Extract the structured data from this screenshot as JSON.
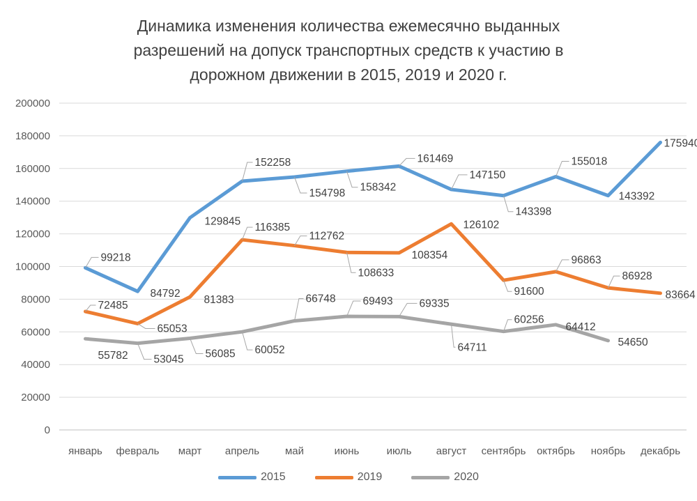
{
  "title": {
    "lines": [
      "Динамика изменения  количества ежемесячно выданных",
      "разрешений на допуск транспортных средств к участию в",
      "дорожном движении в 2015, 2019 и 2020 г."
    ]
  },
  "chart_data": {
    "type": "line",
    "title": "Динамика изменения количества ежемесячно выданных разрешений на допуск транспортных средств к участию в дорожном движении в 2015, 2019 и 2020 г.",
    "xlabel": "",
    "ylabel": "",
    "ylim": [
      0,
      200000
    ],
    "y_ticks": [
      "0",
      "20000",
      "40000",
      "60000",
      "80000",
      "100000",
      "120000",
      "140000",
      "160000",
      "180000",
      "200000"
    ],
    "grid": true,
    "legend_position": "bottom",
    "categories": [
      "январь",
      "февраль",
      "март",
      "апрель",
      "май",
      "июнь",
      "июль",
      "август",
      "сентябрь",
      "октябрь",
      "ноябрь",
      "декабрь"
    ],
    "series": [
      {
        "name": "2015",
        "color": "#5B9BD5",
        "values": [
          99218,
          84792,
          129845,
          152258,
          154798,
          158342,
          161469,
          147150,
          143398,
          155018,
          143392,
          175940
        ],
        "labels": [
          {
            "dx": 22,
            "dy": -10,
            "leader": true
          },
          {
            "dx": 18,
            "dy": 8,
            "leader": false
          },
          {
            "dx": 21,
            "dy": 10,
            "leader": false
          },
          {
            "dx": 18,
            "dy": -22,
            "leader": true
          },
          {
            "dx": 21,
            "dy": 28,
            "leader": true
          },
          {
            "dx": 19,
            "dy": 28,
            "leader": true
          },
          {
            "dx": 26,
            "dy": -6,
            "leader": true
          },
          {
            "dx": 26,
            "dy": -16,
            "leader": true
          },
          {
            "dx": 17,
            "dy": 28,
            "leader": true
          },
          {
            "dx": 22,
            "dy": -17,
            "leader": true
          },
          {
            "dx": 15,
            "dy": 6,
            "leader": false
          },
          {
            "dx": 5,
            "dy": 6,
            "leader": false
          }
        ]
      },
      {
        "name": "2019",
        "color": "#ED7D31",
        "values": [
          72485,
          65053,
          81383,
          116385,
          112762,
          108633,
          108354,
          126102,
          91600,
          96863,
          86928,
          83664
        ],
        "labels": [
          {
            "dx": 18,
            "dy": -4,
            "leader": true
          },
          {
            "dx": 28,
            "dy": 12,
            "leader": true
          },
          {
            "dx": 20,
            "dy": 9,
            "leader": false
          },
          {
            "dx": 18,
            "dy": -13,
            "leader": true
          },
          {
            "dx": 21,
            "dy": -9,
            "leader": true
          },
          {
            "dx": 16,
            "dy": 34,
            "leader": true
          },
          {
            "dx": 18,
            "dy": 8,
            "leader": false
          },
          {
            "dx": 17,
            "dy": 6,
            "leader": false
          },
          {
            "dx": 15,
            "dy": 21,
            "leader": true
          },
          {
            "dx": 22,
            "dy": -12,
            "leader": true
          },
          {
            "dx": 20,
            "dy": -12,
            "leader": true
          },
          {
            "dx": 7,
            "dy": 7,
            "leader": false
          }
        ]
      },
      {
        "name": "2020",
        "color": "#A5A5A5",
        "values": [
          55782,
          53045,
          56085,
          60052,
          66748,
          69493,
          69335,
          64711,
          60256,
          64412,
          54650,
          null
        ],
        "labels": [
          {
            "dx": 18,
            "dy": 29,
            "leader": false
          },
          {
            "dx": 23,
            "dy": 28,
            "leader": true
          },
          {
            "dx": 22,
            "dy": 27,
            "leader": true
          },
          {
            "dx": 18,
            "dy": 31,
            "leader": true
          },
          {
            "dx": 16,
            "dy": -27,
            "leader": true
          },
          {
            "dx": 23,
            "dy": -17,
            "leader": true
          },
          {
            "dx": 29,
            "dy": -14,
            "leader": true
          },
          {
            "dx": 9,
            "dy": 38,
            "leader": true
          },
          {
            "dx": 15,
            "dy": -12,
            "leader": true
          },
          {
            "dx": 14,
            "dy": 8,
            "leader": false
          },
          {
            "dx": 14,
            "dy": 7,
            "leader": false
          },
          null
        ]
      }
    ]
  }
}
